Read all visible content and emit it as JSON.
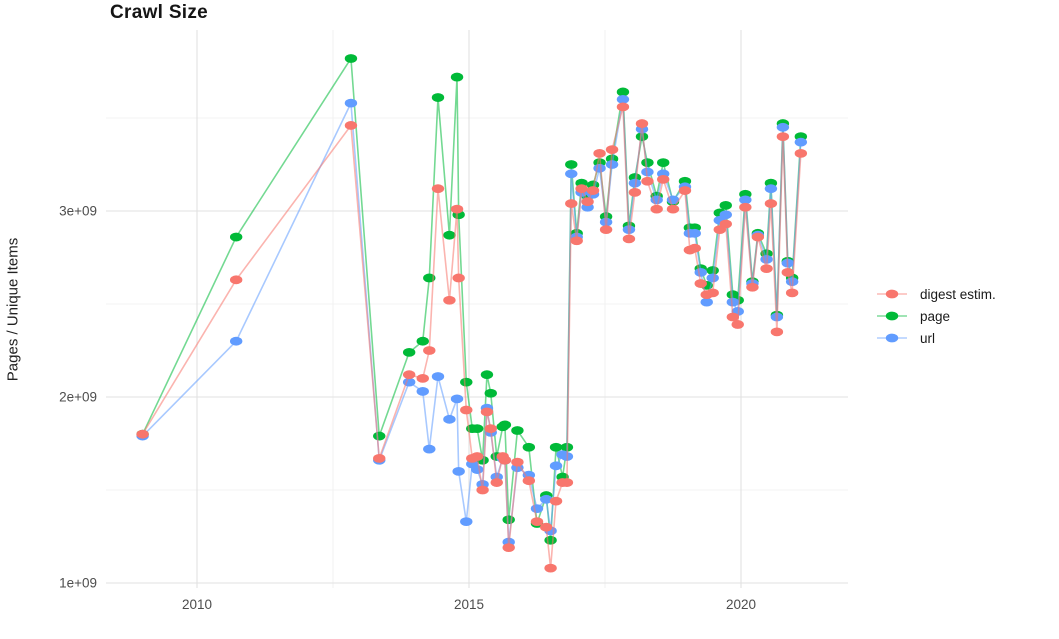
{
  "title": "Crawl Size",
  "y_axis_title": "Pages / Unique Items",
  "legend": {
    "items": [
      {
        "label": "digest estim.",
        "color": "#F8766D"
      },
      {
        "label": "page",
        "color": "#00BA38"
      },
      {
        "label": "url",
        "color": "#619CFF"
      }
    ]
  },
  "colors": {
    "major_grid": "#e2e2e2",
    "minor_grid": "#efefef",
    "tick_text": "#4d4d4d"
  },
  "chart_data": {
    "type": "line",
    "title": "Crawl Size",
    "xlabel": "",
    "ylabel": "Pages / Unique Items",
    "unit": "values are billions (1e9) of pages / unique items",
    "xlim": [
      2008.3,
      2022.0
    ],
    "ylim": [
      0.97,
      3.97
    ],
    "grid": true,
    "legend_position": "right",
    "x_ticks": [
      {
        "value": 2010,
        "label": "2010"
      },
      {
        "value": 2015,
        "label": "2015"
      },
      {
        "value": 2020,
        "label": "2020"
      }
    ],
    "x_minor_ticks": [
      2012.5,
      2017.5
    ],
    "y_ticks": [
      {
        "value": 1,
        "label": "1e+09"
      },
      {
        "value": 2,
        "label": "2e+09"
      },
      {
        "value": 3,
        "label": "3e+09"
      }
    ],
    "y_minor_ticks": [
      1.5,
      2.5,
      3.5
    ],
    "x": [
      2009.0,
      2010.72,
      2012.83,
      2013.35,
      2013.9,
      2014.15,
      2014.27,
      2014.43,
      2014.64,
      2014.78,
      2014.81,
      2014.95,
      2015.06,
      2015.15,
      2015.25,
      2015.33,
      2015.4,
      2015.51,
      2015.62,
      2015.66,
      2015.73,
      2015.89,
      2016.1,
      2016.25,
      2016.42,
      2016.5,
      2016.6,
      2016.72,
      2016.8,
      2016.88,
      2016.98,
      2017.07,
      2017.18,
      2017.28,
      2017.4,
      2017.52,
      2017.63,
      2017.83,
      2017.94,
      2018.05,
      2018.18,
      2018.28,
      2018.45,
      2018.57,
      2018.75,
      2018.97,
      2019.06,
      2019.15,
      2019.26,
      2019.37,
      2019.48,
      2019.61,
      2019.72,
      2019.85,
      2019.94,
      2020.08,
      2020.21,
      2020.31,
      2020.47,
      2020.55,
      2020.66,
      2020.77,
      2020.86,
      2020.94,
      2021.1
    ],
    "series": [
      {
        "name": "digest estim.",
        "color": "#F8766D",
        "values": [
          1.8,
          2.63,
          3.46,
          1.67,
          2.12,
          2.1,
          2.25,
          3.12,
          2.52,
          3.01,
          2.64,
          1.93,
          1.67,
          1.68,
          1.5,
          1.92,
          1.83,
          1.54,
          1.68,
          1.66,
          1.19,
          1.65,
          1.55,
          1.33,
          1.3,
          1.08,
          1.44,
          1.54,
          1.54,
          3.04,
          2.84,
          3.12,
          3.05,
          3.11,
          3.31,
          2.9,
          3.33,
          3.56,
          2.85,
          3.1,
          3.47,
          3.16,
          3.01,
          3.17,
          3.01,
          3.11,
          2.79,
          2.8,
          2.61,
          2.55,
          2.56,
          2.9,
          2.93,
          2.43,
          2.39,
          3.02,
          2.59,
          2.86,
          2.69,
          3.04,
          2.35,
          3.4,
          2.67,
          2.56,
          3.31
        ]
      },
      {
        "name": "page",
        "color": "#00BA38",
        "values": [
          1.8,
          2.86,
          3.82,
          1.79,
          2.24,
          2.3,
          2.64,
          3.61,
          2.87,
          3.72,
          2.98,
          2.08,
          1.83,
          1.83,
          1.66,
          2.12,
          2.02,
          1.68,
          1.84,
          1.85,
          1.34,
          1.82,
          1.73,
          1.32,
          1.47,
          1.23,
          1.73,
          1.57,
          1.73,
          3.25,
          2.88,
          3.15,
          3.08,
          3.14,
          3.26,
          2.97,
          3.28,
          3.64,
          2.92,
          3.18,
          3.4,
          3.26,
          3.08,
          3.26,
          3.05,
          3.16,
          2.91,
          2.91,
          2.69,
          2.6,
          2.68,
          2.99,
          3.03,
          2.55,
          2.52,
          3.09,
          2.62,
          2.88,
          2.77,
          3.15,
          2.44,
          3.47,
          2.73,
          2.64,
          3.4
        ]
      },
      {
        "name": "url",
        "color": "#619CFF",
        "values": [
          1.79,
          2.3,
          3.58,
          1.66,
          2.08,
          2.03,
          1.72,
          2.11,
          1.88,
          1.99,
          1.6,
          1.33,
          1.64,
          1.61,
          1.53,
          1.94,
          1.81,
          1.57,
          1.67,
          1.66,
          1.22,
          1.62,
          1.58,
          1.4,
          1.45,
          1.28,
          1.63,
          1.69,
          1.68,
          3.2,
          2.86,
          3.1,
          3.02,
          3.09,
          3.23,
          2.94,
          3.25,
          3.6,
          2.9,
          3.15,
          3.44,
          3.21,
          3.06,
          3.2,
          3.06,
          3.13,
          2.88,
          2.88,
          2.67,
          2.51,
          2.64,
          2.95,
          2.98,
          2.51,
          2.46,
          3.06,
          2.61,
          2.87,
          2.74,
          3.12,
          2.43,
          3.45,
          2.72,
          2.62,
          3.37
        ]
      }
    ],
    "draw_order": [
      1,
      2,
      0
    ]
  }
}
